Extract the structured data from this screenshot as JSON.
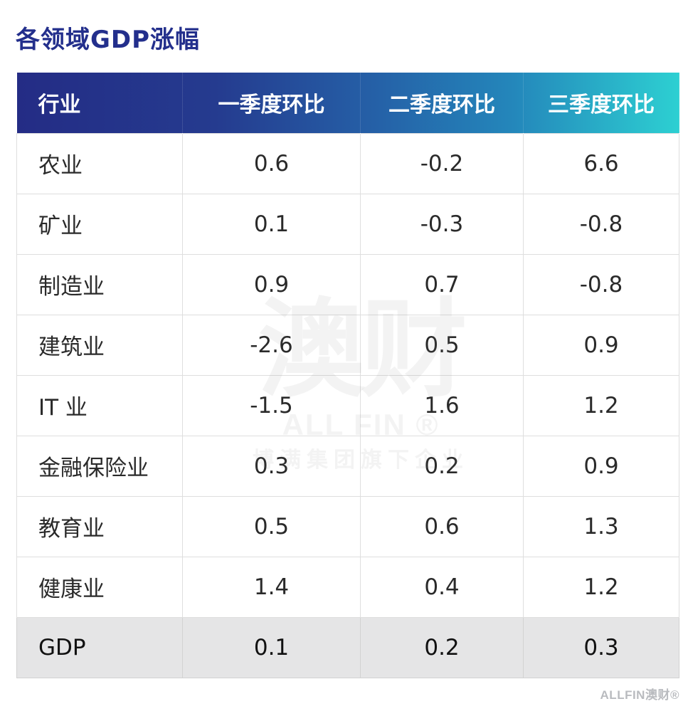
{
  "title": "各领域GDP涨幅",
  "table": {
    "headers": [
      "行业",
      "一季度环比",
      "二季度环比",
      "三季度环比"
    ],
    "rows": [
      [
        "农业",
        "0.6",
        "-0.2",
        "6.6"
      ],
      [
        "矿业",
        "0.1",
        "-0.3",
        "-0.8"
      ],
      [
        "制造业",
        "0.9",
        "0.7",
        "-0.8"
      ],
      [
        "建筑业",
        "-2.6",
        "0.5",
        "0.9"
      ],
      [
        "IT 业",
        "-1.5",
        "1.6",
        "1.2"
      ],
      [
        "金融保险业",
        "0.3",
        "0.2",
        "0.9"
      ],
      [
        "教育业",
        "0.5",
        "0.6",
        "1.3"
      ],
      [
        "健康业",
        "1.4",
        "0.4",
        "1.2"
      ],
      [
        "GDP",
        "0.1",
        "0.2",
        "0.3"
      ]
    ]
  },
  "watermark": {
    "big": "澳财",
    "latin": "ALL FIN ®",
    "sub": "博满集团旗下企业"
  },
  "footer": {
    "logo": "ALLFIN澳财®"
  },
  "colors": {
    "title": "#232f8c",
    "header_start": "#242c85",
    "header_end": "#2dd0d2",
    "total_row_bg": "#e5e5e6"
  }
}
